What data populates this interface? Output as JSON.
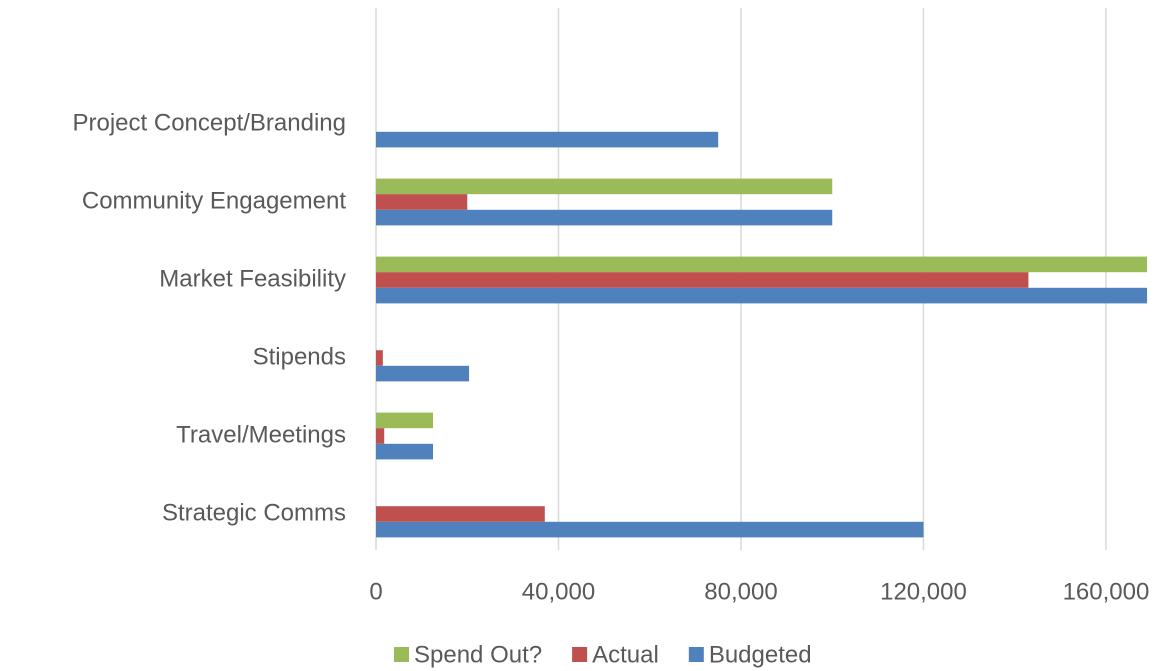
{
  "chart_data": {
    "type": "bar",
    "orientation": "horizontal",
    "categories": [
      "Project Concept/Branding",
      "Community Engagement",
      "Market Feasibility",
      "Stipends",
      "Travel/Meetings",
      "Strategic Comms"
    ],
    "series": [
      {
        "name": "Spend Out?",
        "color": "#9bbb59",
        "values": [
          null,
          100000,
          169000,
          null,
          12500,
          null
        ]
      },
      {
        "name": "Actual",
        "color": "#c0504d",
        "values": [
          null,
          20000,
          143000,
          1500,
          1800,
          37000
        ]
      },
      {
        "name": "Budgeted",
        "color": "#4f81bd",
        "values": [
          75000,
          100000,
          169000,
          20400,
          12500,
          120000
        ]
      }
    ],
    "xlim": [
      0,
      170000
    ],
    "xticks": [
      0,
      {
        "value": 40000,
        "label": "40,000"
      },
      {
        "value": 80000,
        "label": "80,000"
      },
      {
        "value": 120000,
        "label": "120,000"
      },
      {
        "value": 160000,
        "label": "160,000"
      }
    ],
    "grid": true,
    "legend": "bottom"
  }
}
